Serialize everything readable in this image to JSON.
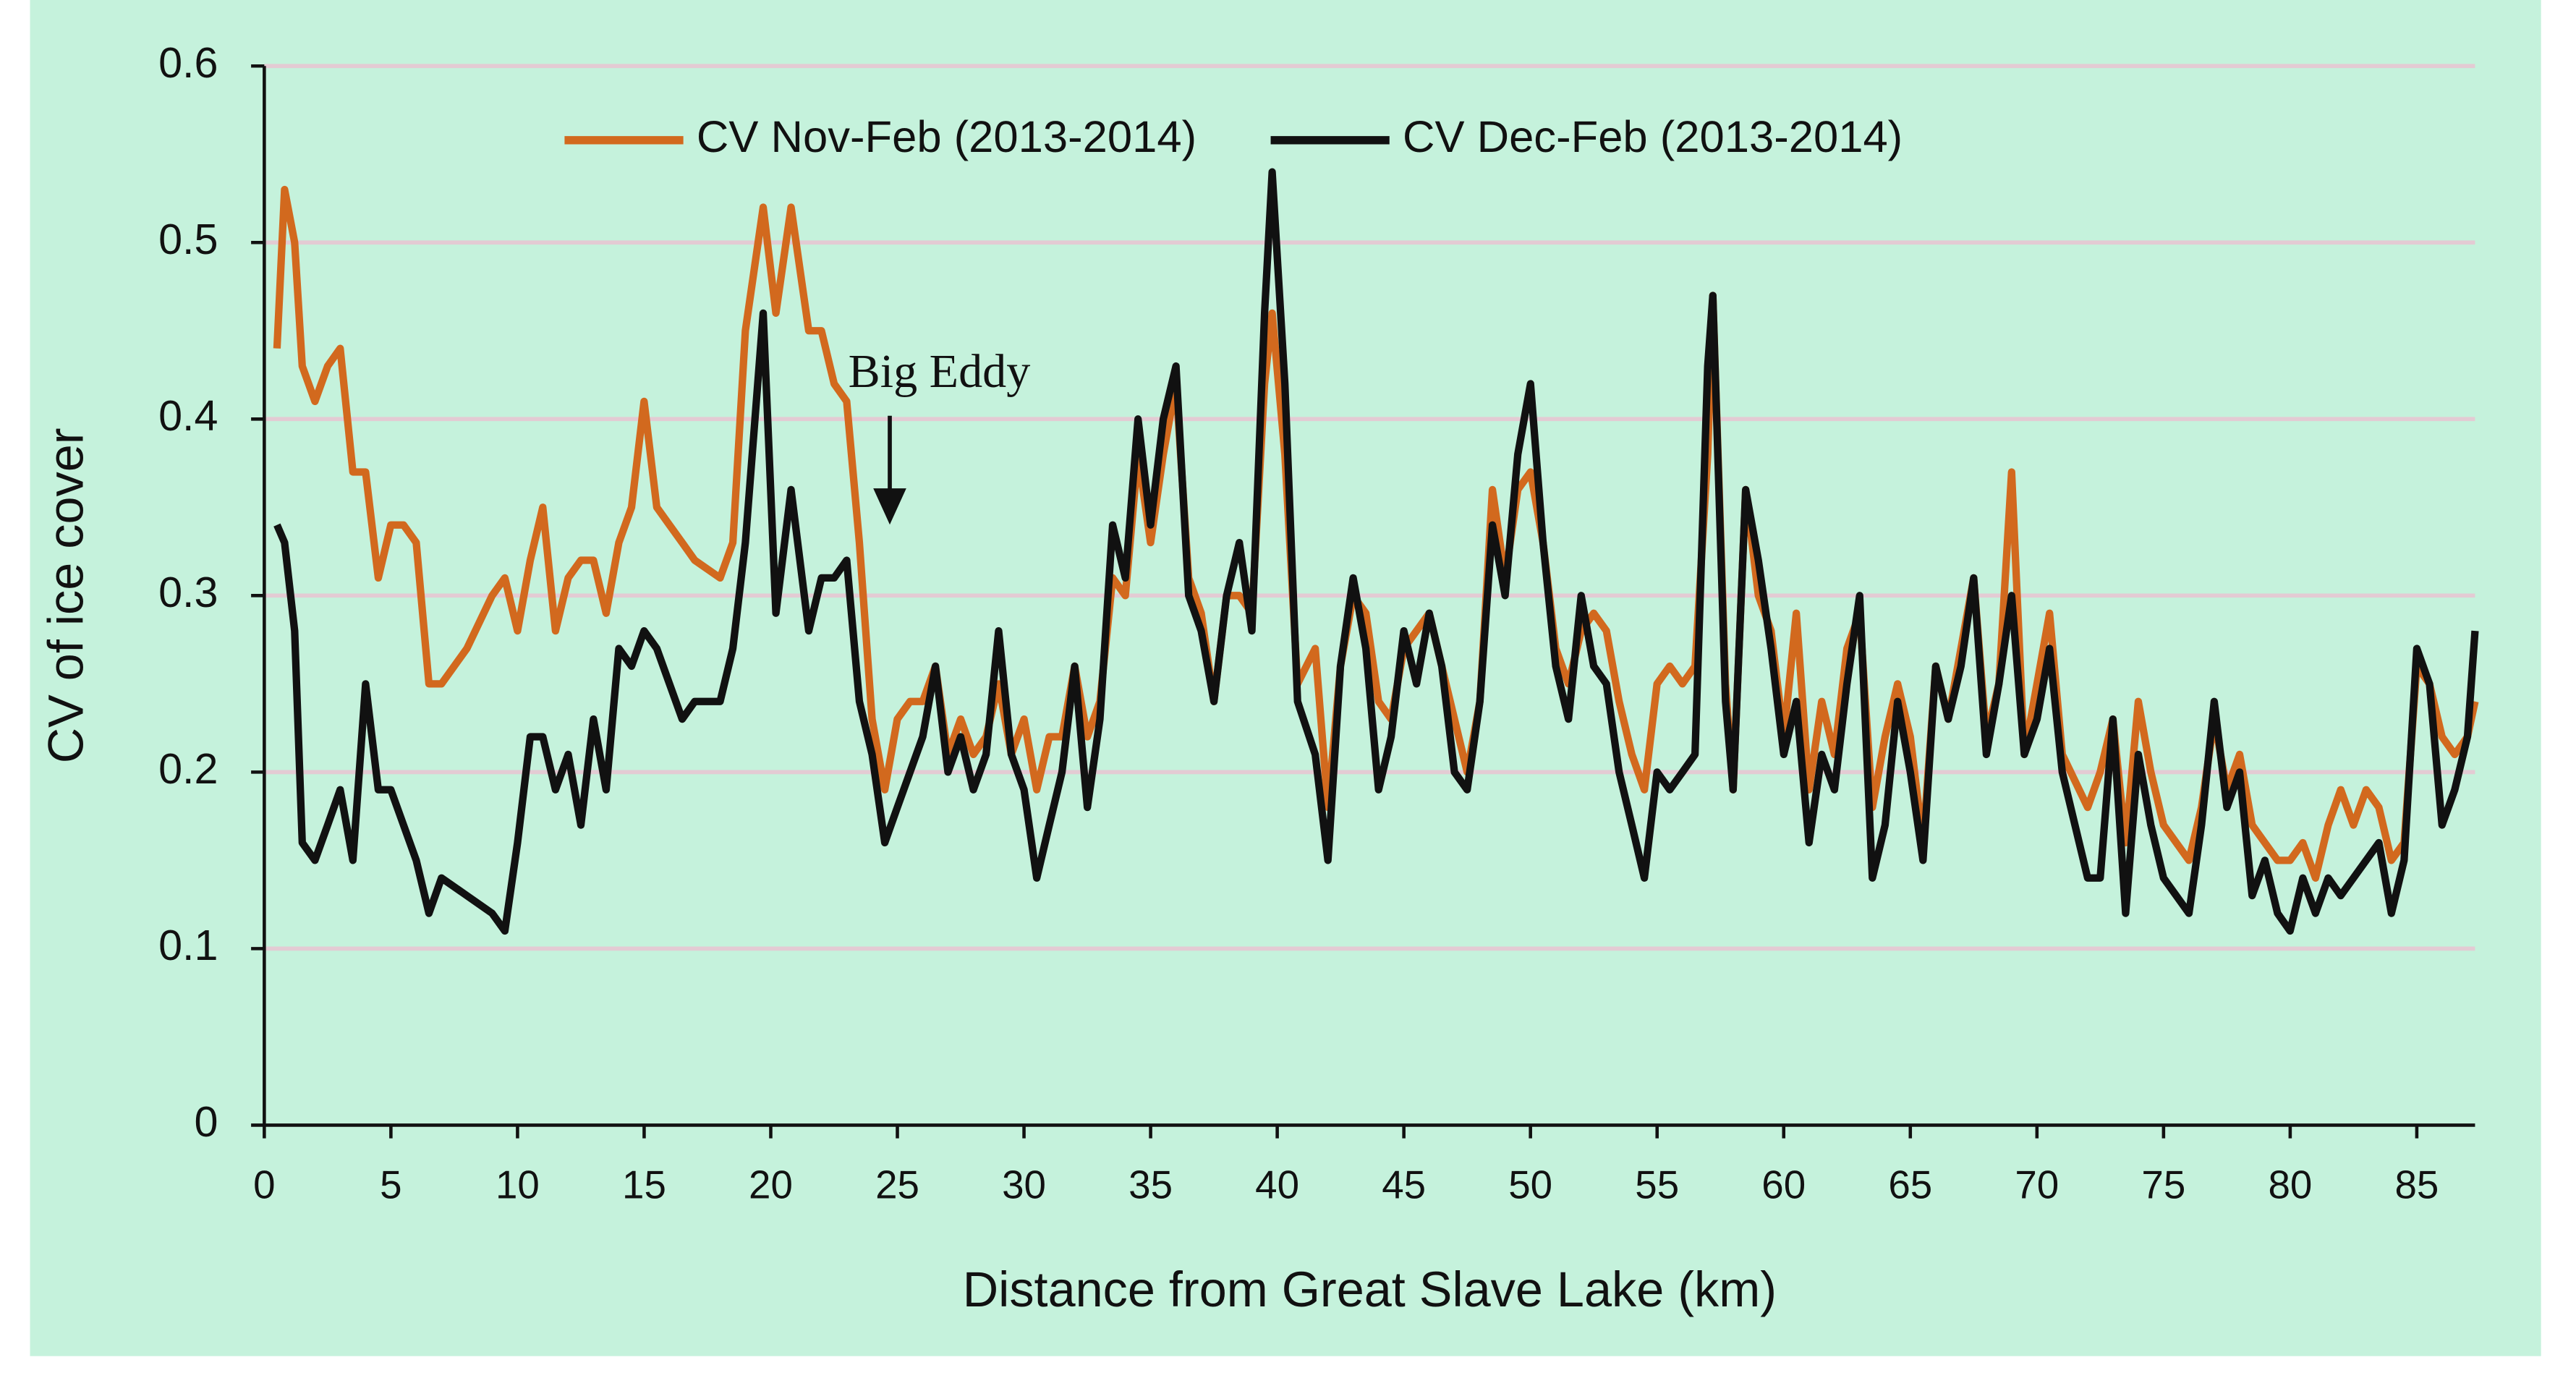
{
  "chart_data": {
    "type": "line",
    "y_label": "CV of ice cover",
    "x_label": "Distance from Great Slave Lake (km)",
    "annotation": "Big Eddy",
    "x": [
      0.5,
      0.8,
      1.2,
      1.5,
      2,
      2.5,
      3,
      3.5,
      4,
      4.5,
      5,
      5.5,
      6,
      6.5,
      7,
      8,
      9,
      9.5,
      10,
      10.5,
      11,
      11.5,
      12,
      12.5,
      13,
      13.5,
      14,
      14.5,
      15,
      15.5,
      16,
      16.5,
      17,
      18,
      18.5,
      19,
      19.7,
      20.2,
      20.8,
      21.5,
      22,
      22.5,
      23,
      23.5,
      24,
      24.5,
      25,
      25.5,
      26,
      26.5,
      27,
      27.5,
      28,
      28.5,
      29,
      29.5,
      30,
      30.5,
      31,
      31.5,
      32,
      32.5,
      33,
      33.5,
      34,
      34.5,
      35,
      35.5,
      36,
      36.5,
      37,
      37.5,
      38,
      38.5,
      39,
      39.5,
      39.8,
      40.3,
      40.8,
      41.5,
      42,
      42.5,
      43,
      43.5,
      44,
      44.5,
      45,
      45.5,
      46,
      46.5,
      47,
      47.5,
      48,
      48.5,
      49,
      49.5,
      50,
      50.5,
      51,
      51.5,
      52,
      52.5,
      53,
      53.5,
      54,
      54.5,
      55,
      55.5,
      56,
      56.5,
      57,
      57.2,
      57.7,
      58,
      58.5,
      59,
      59.5,
      60,
      60.5,
      61,
      61.5,
      62,
      62.5,
      63,
      63.5,
      64,
      64.5,
      65,
      65.5,
      66,
      66.5,
      67,
      67.5,
      68,
      68.5,
      69,
      69.5,
      70,
      70.5,
      71,
      72,
      72.5,
      73,
      73.5,
      74,
      74.5,
      75,
      76,
      76.5,
      77,
      77.5,
      78,
      78.5,
      79,
      79.5,
      80,
      80.5,
      81,
      81.5,
      82,
      82.5,
      83,
      83.5,
      84,
      84.5,
      85,
      85.5,
      86,
      86.5,
      87,
      87.3
    ],
    "series": [
      {
        "name": "CV Nov-Feb (2013-2014)",
        "color": "#d2691e",
        "values": [
          0.44,
          0.53,
          0.5,
          0.43,
          0.41,
          0.43,
          0.44,
          0.37,
          0.37,
          0.31,
          0.34,
          0.34,
          0.33,
          0.25,
          0.25,
          0.27,
          0.3,
          0.31,
          0.28,
          0.32,
          0.35,
          0.28,
          0.31,
          0.32,
          0.32,
          0.29,
          0.33,
          0.35,
          0.41,
          0.35,
          0.34,
          0.33,
          0.32,
          0.31,
          0.33,
          0.45,
          0.52,
          0.46,
          0.52,
          0.45,
          0.45,
          0.42,
          0.41,
          0.33,
          0.23,
          0.19,
          0.23,
          0.24,
          0.24,
          0.26,
          0.21,
          0.23,
          0.21,
          0.22,
          0.25,
          0.21,
          0.23,
          0.19,
          0.22,
          0.22,
          0.26,
          0.22,
          0.24,
          0.31,
          0.3,
          0.38,
          0.33,
          0.38,
          0.42,
          0.31,
          0.29,
          0.24,
          0.3,
          0.3,
          0.29,
          0.42,
          0.46,
          0.38,
          0.25,
          0.27,
          0.18,
          0.26,
          0.3,
          0.29,
          0.24,
          0.23,
          0.27,
          0.28,
          0.29,
          0.26,
          0.23,
          0.2,
          0.24,
          0.36,
          0.31,
          0.36,
          0.37,
          0.33,
          0.27,
          0.25,
          0.28,
          0.29,
          0.28,
          0.24,
          0.21,
          0.19,
          0.25,
          0.26,
          0.25,
          0.26,
          0.38,
          0.47,
          0.25,
          0.19,
          0.36,
          0.3,
          0.28,
          0.22,
          0.29,
          0.19,
          0.24,
          0.21,
          0.27,
          0.29,
          0.18,
          0.22,
          0.25,
          0.22,
          0.16,
          0.26,
          0.23,
          0.27,
          0.31,
          0.22,
          0.25,
          0.37,
          0.21,
          0.25,
          0.29,
          0.21,
          0.18,
          0.2,
          0.23,
          0.16,
          0.24,
          0.2,
          0.17,
          0.15,
          0.18,
          0.23,
          0.19,
          0.21,
          0.17,
          0.16,
          0.15,
          0.15,
          0.16,
          0.14,
          0.17,
          0.19,
          0.17,
          0.19,
          0.18,
          0.15,
          0.16,
          0.26,
          0.25,
          0.22,
          0.21,
          0.22,
          0.24
        ]
      },
      {
        "name": "CV Dec-Feb (2013-2014)",
        "color": "#111111",
        "values": [
          0.34,
          0.33,
          0.28,
          0.16,
          0.15,
          0.17,
          0.19,
          0.15,
          0.25,
          0.19,
          0.19,
          0.17,
          0.15,
          0.12,
          0.14,
          0.13,
          0.12,
          0.11,
          0.16,
          0.22,
          0.22,
          0.19,
          0.21,
          0.17,
          0.23,
          0.19,
          0.27,
          0.26,
          0.28,
          0.27,
          0.25,
          0.23,
          0.24,
          0.24,
          0.27,
          0.33,
          0.46,
          0.29,
          0.36,
          0.28,
          0.31,
          0.31,
          0.32,
          0.24,
          0.21,
          0.16,
          0.18,
          0.2,
          0.22,
          0.26,
          0.2,
          0.22,
          0.19,
          0.21,
          0.28,
          0.21,
          0.19,
          0.14,
          0.17,
          0.2,
          0.26,
          0.18,
          0.23,
          0.34,
          0.31,
          0.4,
          0.34,
          0.4,
          0.43,
          0.3,
          0.28,
          0.24,
          0.3,
          0.33,
          0.28,
          0.46,
          0.54,
          0.42,
          0.24,
          0.21,
          0.15,
          0.26,
          0.31,
          0.27,
          0.19,
          0.22,
          0.28,
          0.25,
          0.29,
          0.26,
          0.2,
          0.19,
          0.24,
          0.34,
          0.3,
          0.38,
          0.42,
          0.33,
          0.26,
          0.23,
          0.3,
          0.26,
          0.25,
          0.2,
          0.17,
          0.14,
          0.2,
          0.19,
          0.2,
          0.21,
          0.43,
          0.47,
          0.24,
          0.19,
          0.36,
          0.32,
          0.27,
          0.21,
          0.24,
          0.16,
          0.21,
          0.19,
          0.25,
          0.3,
          0.14,
          0.17,
          0.24,
          0.2,
          0.15,
          0.26,
          0.23,
          0.26,
          0.31,
          0.21,
          0.25,
          0.3,
          0.21,
          0.23,
          0.27,
          0.2,
          0.14,
          0.14,
          0.23,
          0.12,
          0.21,
          0.17,
          0.14,
          0.12,
          0.17,
          0.24,
          0.18,
          0.2,
          0.13,
          0.15,
          0.12,
          0.11,
          0.14,
          0.12,
          0.14,
          0.13,
          0.14,
          0.15,
          0.16,
          0.12,
          0.15,
          0.27,
          0.25,
          0.17,
          0.19,
          0.22,
          0.28
        ]
      }
    ],
    "xlim": [
      0,
      87.3
    ],
    "xticks": [
      0,
      5,
      10,
      15,
      20,
      25,
      30,
      35,
      40,
      45,
      50,
      55,
      60,
      65,
      70,
      75,
      80,
      85
    ],
    "ylim": [
      0,
      0.6
    ],
    "yticks": [
      0,
      0.1,
      0.2,
      0.3,
      0.4,
      0.5,
      0.6
    ],
    "grid": true,
    "legend": "top"
  }
}
